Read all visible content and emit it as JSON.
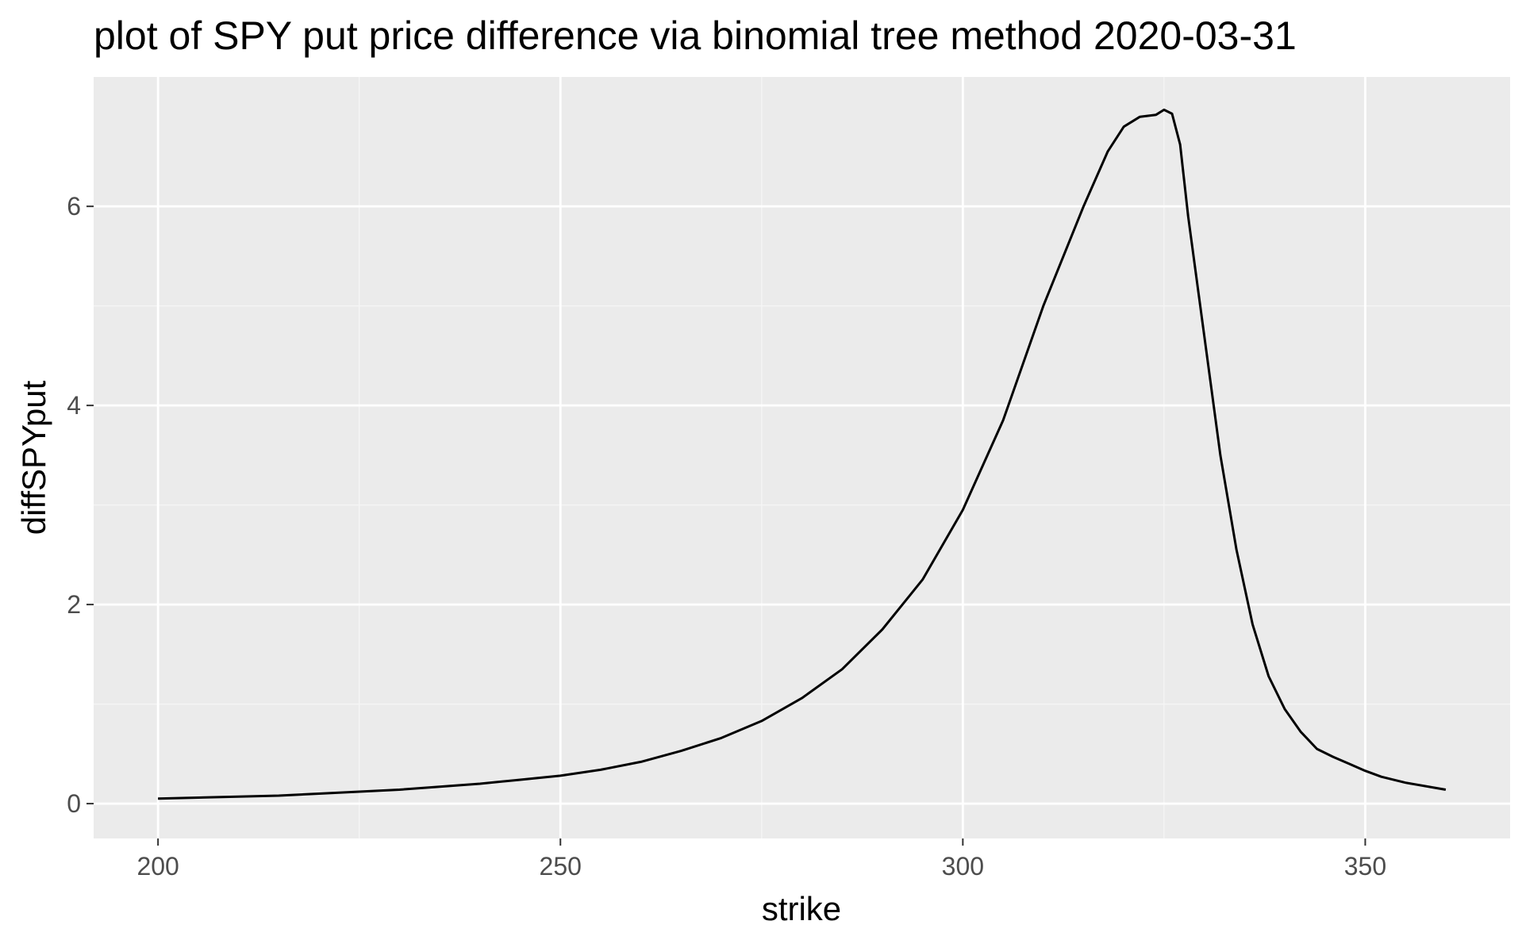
{
  "chart_data": {
    "type": "line",
    "title": "plot of SPY put price difference via binomial tree method 2020-03-31",
    "xlabel": "strike",
    "ylabel": "diffSPYput",
    "xlim": [
      192,
      368
    ],
    "ylim": [
      -0.35,
      7.3
    ],
    "x_ticks": [
      200,
      250,
      300,
      350
    ],
    "x_tick_labels": [
      "200",
      "250",
      "300",
      "350"
    ],
    "y_ticks": [
      0,
      2,
      4,
      6
    ],
    "y_tick_labels": [
      "0",
      "2",
      "4",
      "6"
    ],
    "grid": true,
    "legend": "none",
    "series": [
      {
        "color": "#000000",
        "x": [
          200,
          205,
          210,
          215,
          220,
          225,
          230,
          235,
          240,
          245,
          250,
          255,
          260,
          265,
          270,
          275,
          280,
          285,
          290,
          295,
          300,
          305,
          310,
          315,
          318,
          320,
          322,
          324,
          325,
          326,
          327,
          328,
          330,
          332,
          334,
          336,
          338,
          340,
          342,
          344,
          346,
          348,
          350,
          352,
          355,
          360
        ],
        "y": [
          0.05,
          0.06,
          0.07,
          0.08,
          0.1,
          0.12,
          0.14,
          0.17,
          0.2,
          0.24,
          0.28,
          0.34,
          0.42,
          0.53,
          0.66,
          0.83,
          1.06,
          1.35,
          1.75,
          2.25,
          2.95,
          3.85,
          5.0,
          6.0,
          6.55,
          6.8,
          6.9,
          6.92,
          6.97,
          6.93,
          6.62,
          5.9,
          4.7,
          3.5,
          2.55,
          1.8,
          1.28,
          0.95,
          0.72,
          0.55,
          0.47,
          0.4,
          0.33,
          0.27,
          0.21,
          0.14
        ]
      }
    ],
    "colors": {
      "panel": "#ebebeb",
      "grid_major": "#ffffff",
      "grid_minor": "#f5f5f5",
      "line": "#000000",
      "tick_text": "#4d4d4d",
      "tick_mark": "#333333"
    }
  }
}
